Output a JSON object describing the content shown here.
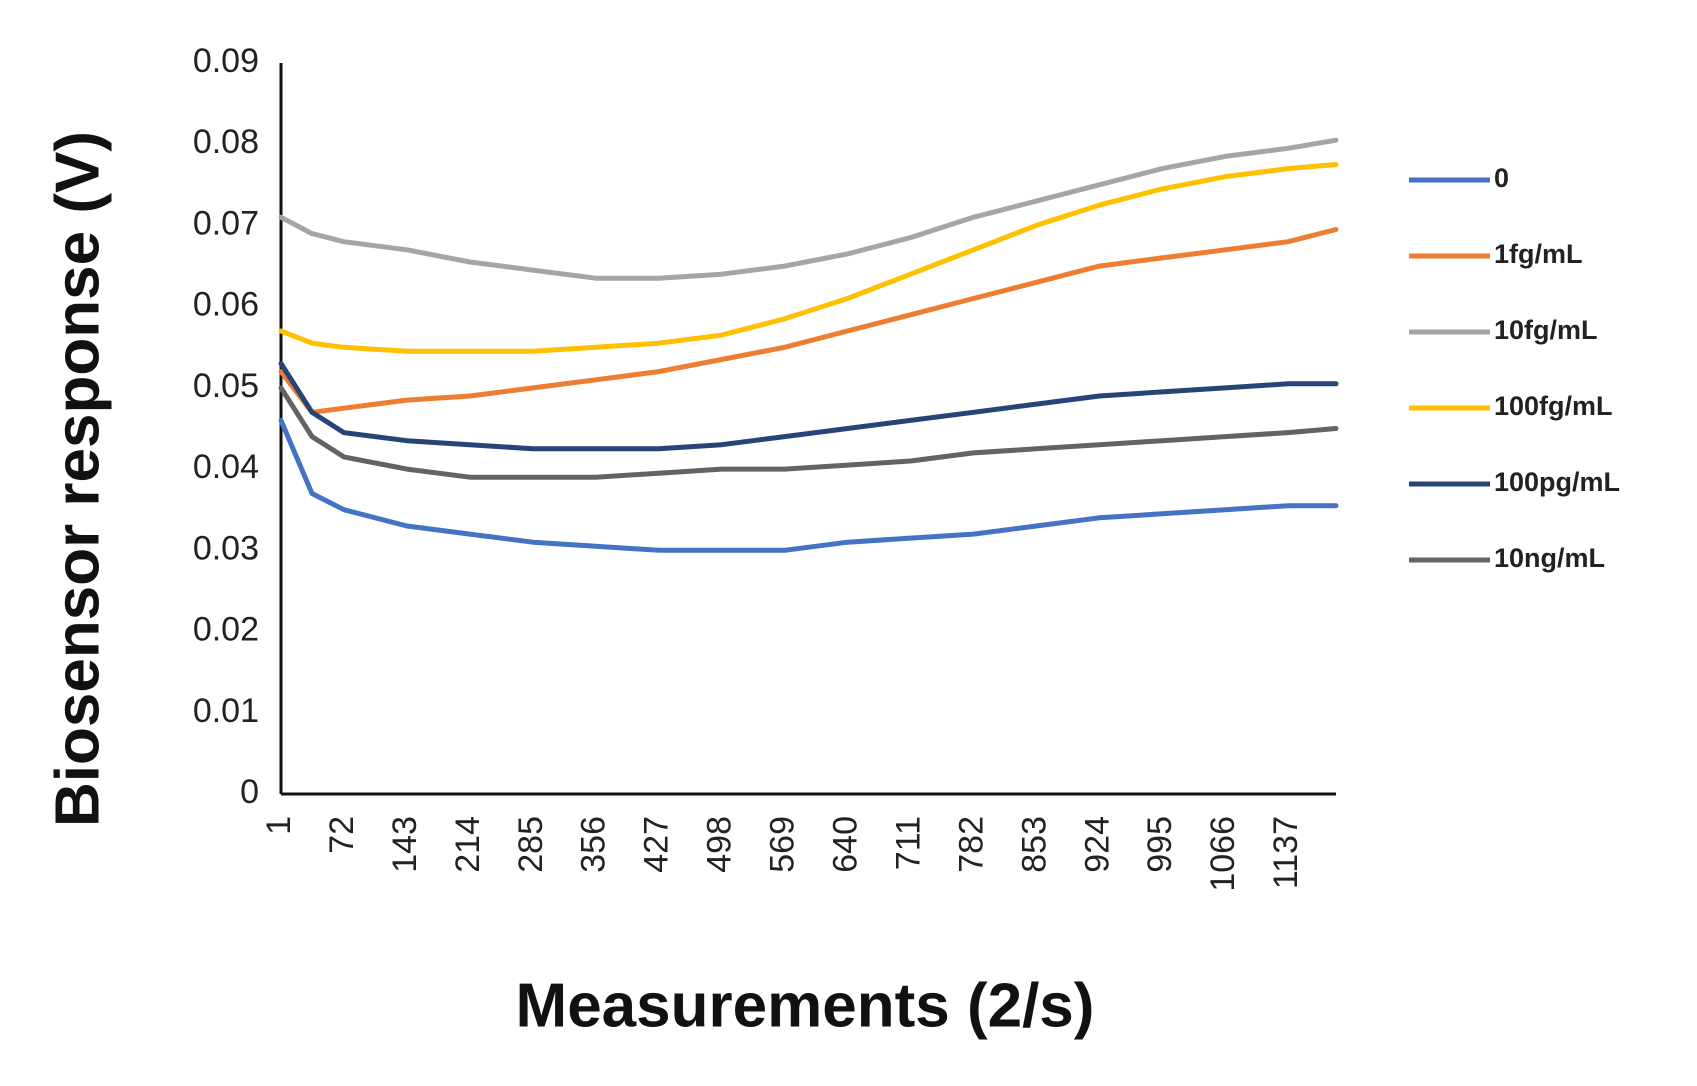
{
  "chart_data": {
    "type": "line",
    "x_label": "Measurements (2/s)",
    "y_label": "Biosensor response (V)",
    "x": [
      1,
      36,
      72,
      143,
      214,
      285,
      356,
      427,
      498,
      569,
      640,
      711,
      782,
      853,
      924,
      995,
      1066,
      1137,
      1191
    ],
    "xlim": [
      1,
      1191
    ],
    "xticks": [
      1,
      72,
      143,
      214,
      285,
      356,
      427,
      498,
      569,
      640,
      711,
      782,
      853,
      924,
      995,
      1066,
      1137
    ],
    "ylim": [
      0,
      0.09
    ],
    "yticks": [
      0,
      0.01,
      0.02,
      0.03,
      0.04,
      0.05,
      0.06,
      0.07,
      0.08,
      0.09
    ],
    "grid": false,
    "legend": "right",
    "series": [
      {
        "name": "0",
        "color": "#4472c4",
        "values": [
          0.046,
          0.037,
          0.035,
          0.033,
          0.032,
          0.031,
          0.0305,
          0.03,
          0.03,
          0.03,
          0.031,
          0.0315,
          0.032,
          0.033,
          0.034,
          0.0345,
          0.035,
          0.0355,
          0.0355
        ]
      },
      {
        "name": "1fg/mL",
        "color": "#ed7d31",
        "values": [
          0.052,
          0.047,
          0.0475,
          0.0485,
          0.049,
          0.05,
          0.051,
          0.052,
          0.0535,
          0.055,
          0.057,
          0.059,
          0.061,
          0.063,
          0.065,
          0.066,
          0.067,
          0.068,
          0.0695
        ]
      },
      {
        "name": "10fg/mL",
        "color": "#a5a5a5",
        "values": [
          0.071,
          0.069,
          0.068,
          0.067,
          0.0655,
          0.0645,
          0.0635,
          0.0635,
          0.064,
          0.065,
          0.0665,
          0.0685,
          0.071,
          0.073,
          0.075,
          0.077,
          0.0785,
          0.0795,
          0.0805
        ]
      },
      {
        "name": "100fg/mL",
        "color": "#ffc000",
        "values": [
          0.057,
          0.0555,
          0.055,
          0.0545,
          0.0545,
          0.0545,
          0.055,
          0.0555,
          0.0565,
          0.0585,
          0.061,
          0.064,
          0.067,
          0.07,
          0.0725,
          0.0745,
          0.076,
          0.077,
          0.0775
        ]
      },
      {
        "name": "100pg/mL",
        "color": "#264478",
        "values": [
          0.053,
          0.047,
          0.0445,
          0.0435,
          0.043,
          0.0425,
          0.0425,
          0.0425,
          0.043,
          0.044,
          0.045,
          0.046,
          0.047,
          0.048,
          0.049,
          0.0495,
          0.05,
          0.0505,
          0.0505
        ]
      },
      {
        "name": "10ng/mL",
        "color": "#636363",
        "values": [
          0.05,
          0.044,
          0.0415,
          0.04,
          0.039,
          0.039,
          0.039,
          0.0395,
          0.04,
          0.04,
          0.0405,
          0.041,
          0.042,
          0.0425,
          0.043,
          0.0435,
          0.044,
          0.0445,
          0.045
        ]
      }
    ]
  }
}
